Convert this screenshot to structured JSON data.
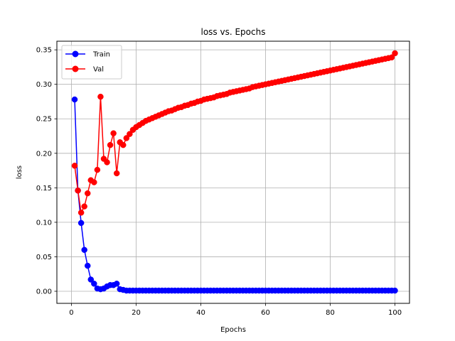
{
  "chart_data": {
    "type": "line",
    "title": "loss vs. Epochs",
    "xlabel": "Epochs",
    "ylabel": "loss",
    "xlim": [
      -4.5,
      104.5
    ],
    "ylim": [
      -0.0175,
      0.3625
    ],
    "xticks": [
      0,
      20,
      40,
      60,
      80,
      100
    ],
    "yticks": [
      "0.00",
      "0.05",
      "0.10",
      "0.15",
      "0.20",
      "0.25",
      "0.30",
      "0.35"
    ],
    "grid": true,
    "legend_position": "top-left",
    "series": [
      {
        "name": "Train",
        "color": "#0000ff",
        "marker": "circle",
        "x": [
          1,
          2,
          3,
          4,
          5,
          6,
          7,
          8,
          9,
          10,
          11,
          12,
          13,
          14,
          15,
          16,
          17,
          18,
          19,
          20,
          21,
          22,
          23,
          24,
          25,
          26,
          27,
          28,
          29,
          30,
          31,
          32,
          33,
          34,
          35,
          36,
          37,
          38,
          39,
          40,
          41,
          42,
          43,
          44,
          45,
          46,
          47,
          48,
          49,
          50,
          51,
          52,
          53,
          54,
          55,
          56,
          57,
          58,
          59,
          60,
          61,
          62,
          63,
          64,
          65,
          66,
          67,
          68,
          69,
          70,
          71,
          72,
          73,
          74,
          75,
          76,
          77,
          78,
          79,
          80,
          81,
          82,
          83,
          84,
          85,
          86,
          87,
          88,
          89,
          90,
          91,
          92,
          93,
          94,
          95,
          96,
          97,
          98,
          99,
          100
        ],
        "values": [
          0.278,
          0.146,
          0.099,
          0.06,
          0.037,
          0.017,
          0.011,
          0.004,
          0.003,
          0.004,
          0.007,
          0.009,
          0.009,
          0.011,
          0.003,
          0.002,
          0.001,
          0.001,
          0.001,
          0.001,
          0.001,
          0.001,
          0.001,
          0.001,
          0.001,
          0.001,
          0.001,
          0.001,
          0.001,
          0.001,
          0.001,
          0.001,
          0.001,
          0.001,
          0.001,
          0.001,
          0.001,
          0.001,
          0.001,
          0.001,
          0.001,
          0.001,
          0.001,
          0.001,
          0.001,
          0.001,
          0.001,
          0.001,
          0.001,
          0.001,
          0.001,
          0.001,
          0.001,
          0.001,
          0.001,
          0.001,
          0.001,
          0.001,
          0.001,
          0.001,
          0.001,
          0.001,
          0.001,
          0.001,
          0.001,
          0.001,
          0.001,
          0.001,
          0.001,
          0.001,
          0.001,
          0.001,
          0.001,
          0.001,
          0.001,
          0.001,
          0.001,
          0.001,
          0.001,
          0.001,
          0.001,
          0.001,
          0.001,
          0.001,
          0.001,
          0.001,
          0.001,
          0.001,
          0.001,
          0.001,
          0.001,
          0.001,
          0.001,
          0.001,
          0.001,
          0.001,
          0.001,
          0.001,
          0.001,
          0.001
        ]
      },
      {
        "name": "Val",
        "color": "#ff0000",
        "marker": "circle",
        "x": [
          1,
          2,
          3,
          4,
          5,
          6,
          7,
          8,
          9,
          10,
          11,
          12,
          13,
          14,
          15,
          16,
          17,
          18,
          19,
          20,
          21,
          22,
          23,
          24,
          25,
          26,
          27,
          28,
          29,
          30,
          31,
          32,
          33,
          34,
          35,
          36,
          37,
          38,
          39,
          40,
          41,
          42,
          43,
          44,
          45,
          46,
          47,
          48,
          49,
          50,
          51,
          52,
          53,
          54,
          55,
          56,
          57,
          58,
          59,
          60,
          61,
          62,
          63,
          64,
          65,
          66,
          67,
          68,
          69,
          70,
          71,
          72,
          73,
          74,
          75,
          76,
          77,
          78,
          79,
          80,
          81,
          82,
          83,
          84,
          85,
          86,
          87,
          88,
          89,
          90,
          91,
          92,
          93,
          94,
          95,
          96,
          97,
          98,
          99,
          100
        ],
        "values": [
          0.182,
          0.146,
          0.114,
          0.123,
          0.142,
          0.161,
          0.158,
          0.176,
          0.282,
          0.192,
          0.187,
          0.212,
          0.229,
          0.171,
          0.216,
          0.212,
          0.222,
          0.228,
          0.234,
          0.238,
          0.241,
          0.244,
          0.247,
          0.249,
          0.251,
          0.253,
          0.255,
          0.257,
          0.259,
          0.261,
          0.262,
          0.264,
          0.266,
          0.267,
          0.269,
          0.27,
          0.272,
          0.273,
          0.275,
          0.276,
          0.278,
          0.279,
          0.28,
          0.281,
          0.283,
          0.284,
          0.285,
          0.286,
          0.288,
          0.289,
          0.29,
          0.291,
          0.292,
          0.293,
          0.294,
          0.296,
          0.297,
          0.298,
          0.299,
          0.3,
          0.301,
          0.302,
          0.303,
          0.304,
          0.305,
          0.306,
          0.307,
          0.308,
          0.309,
          0.31,
          0.311,
          0.312,
          0.313,
          0.314,
          0.315,
          0.316,
          0.317,
          0.318,
          0.319,
          0.32,
          0.321,
          0.322,
          0.323,
          0.324,
          0.325,
          0.326,
          0.327,
          0.328,
          0.329,
          0.33,
          0.331,
          0.332,
          0.333,
          0.334,
          0.335,
          0.336,
          0.337,
          0.338,
          0.339,
          0.345
        ]
      }
    ]
  }
}
